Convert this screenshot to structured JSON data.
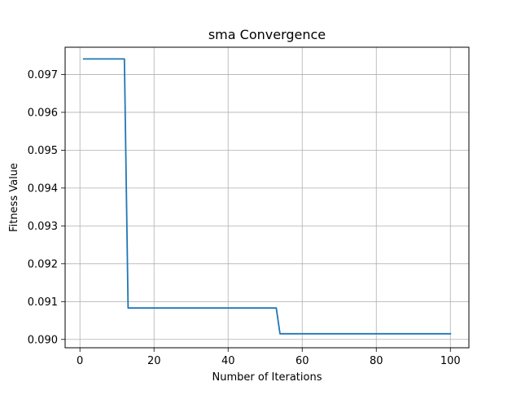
{
  "chart_data": {
    "type": "line",
    "title": "sma Convergence",
    "xlabel": "Number of Iterations",
    "ylabel": "Fitness Value",
    "xlim": [
      -4.0,
      105.0
    ],
    "ylim": [
      0.08978,
      0.09772
    ],
    "xticks": [
      0,
      20,
      40,
      60,
      80,
      100
    ],
    "yticks": [
      0.09,
      0.091,
      0.092,
      0.093,
      0.094,
      0.095,
      0.096,
      0.097
    ],
    "xtick_labels": [
      "0",
      "20",
      "40",
      "60",
      "80",
      "100"
    ],
    "ytick_labels": [
      "0.090",
      "0.091",
      "0.092",
      "0.093",
      "0.094",
      "0.095",
      "0.096",
      "0.097"
    ],
    "grid": true,
    "series": [
      {
        "color": "#1f77b4",
        "x": [
          1,
          12,
          13,
          53,
          54,
          100
        ],
        "y": [
          0.09741,
          0.09741,
          0.09083,
          0.09083,
          0.09015,
          0.09015
        ]
      }
    ]
  }
}
